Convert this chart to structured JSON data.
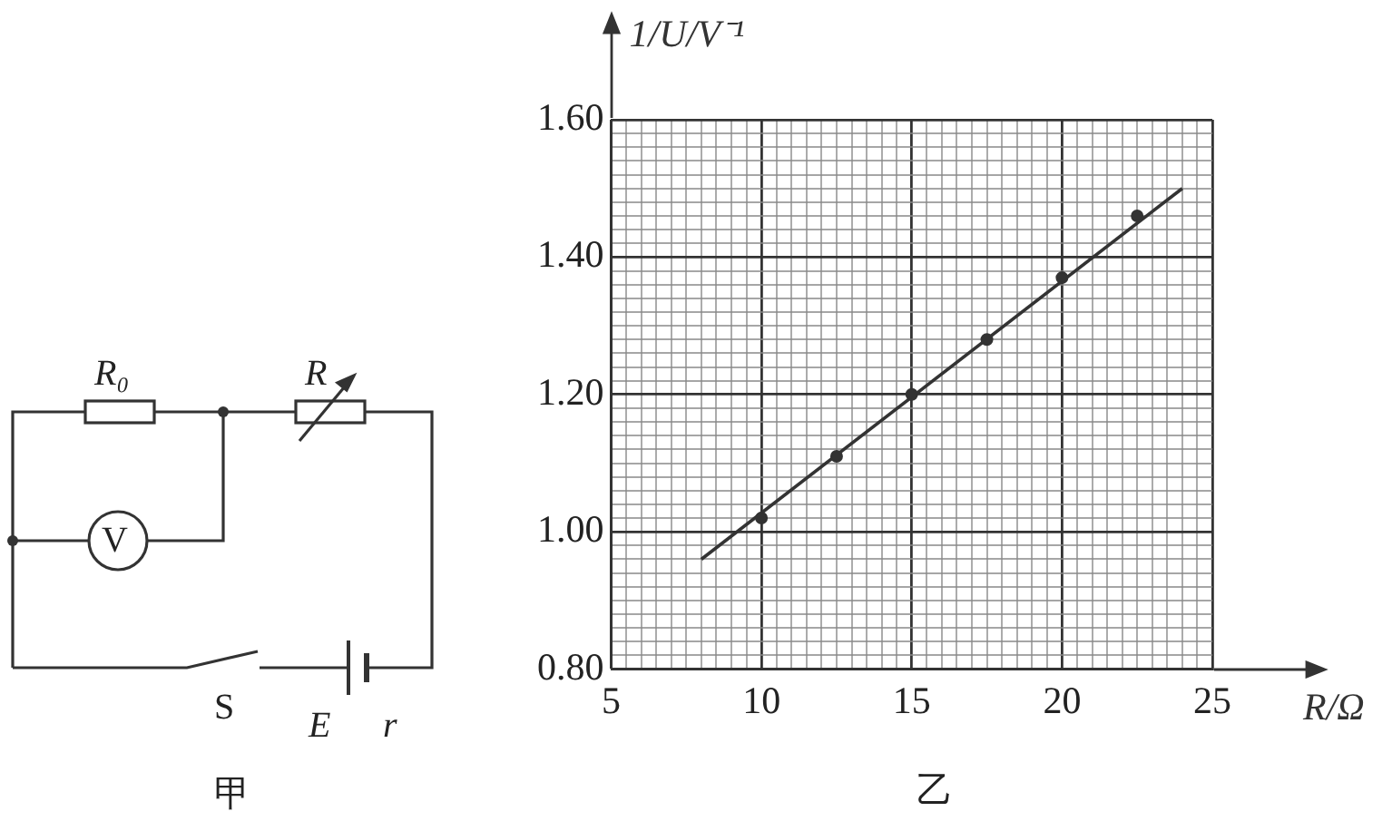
{
  "chart_data": {
    "type": "scatter",
    "xlabel": "R/Ω",
    "ylabel": "1/U/V⁻¹",
    "annotations": [
      "R₀",
      "R",
      "V",
      "S",
      "E",
      "r",
      "甲",
      "乙"
    ],
    "xlim": [
      5,
      25
    ],
    "ylim": [
      0.8,
      1.6
    ],
    "xticks": [
      5,
      {
        "value": 5.5,
        "label": null
      },
      {
        "value": 6,
        "label": null
      },
      {
        "value": 6.5,
        "label": null
      },
      {
        "value": 7,
        "label": null
      },
      {
        "value": 7.5,
        "label": null
      },
      {
        "value": 8,
        "label": null
      },
      {
        "value": 8.5,
        "label": null
      },
      {
        "value": 9,
        "label": null
      },
      {
        "value": 9.5,
        "label": null
      },
      10,
      {
        "value": 10.5,
        "label": null
      },
      {
        "value": 11,
        "label": null
      },
      {
        "value": 11.5,
        "label": null
      },
      {
        "value": 12,
        "label": null
      },
      {
        "value": 12.5,
        "label": null
      },
      {
        "value": 13,
        "label": null
      },
      {
        "value": 13.5,
        "label": null
      },
      {
        "value": 14,
        "label": null
      },
      {
        "value": 14.5,
        "label": null
      },
      15,
      {
        "value": 15.5,
        "label": null
      },
      {
        "value": 16,
        "label": null
      },
      {
        "value": 16.5,
        "label": null
      },
      {
        "value": 17,
        "label": null
      },
      {
        "value": 17.5,
        "label": null
      },
      {
        "value": 18,
        "label": null
      },
      {
        "value": 18.5,
        "label": null
      },
      {
        "value": 19,
        "label": null
      },
      {
        "value": 19.5,
        "label": null
      },
      20,
      {
        "value": 20.5,
        "label": null
      },
      {
        "value": 21,
        "label": null
      },
      {
        "value": 21.5,
        "label": null
      },
      {
        "value": 22,
        "label": null
      },
      {
        "value": 22.5,
        "label": null
      },
      {
        "value": 23,
        "label": null
      },
      {
        "value": 23.5,
        "label": null
      },
      {
        "value": 24,
        "label": null
      },
      {
        "value": 24.5,
        "label": null
      },
      25
    ],
    "yticks": [
      {
        "value": 0.8,
        "label": "0.80"
      },
      {
        "value": 0.82,
        "label": null
      },
      {
        "value": 0.84,
        "label": null
      },
      {
        "value": 0.86,
        "label": null
      },
      {
        "value": 0.88,
        "label": null
      },
      {
        "value": 0.9,
        "label": null
      },
      {
        "value": 0.92,
        "label": null
      },
      {
        "value": 0.94,
        "label": null
      },
      {
        "value": 0.96,
        "label": null
      },
      {
        "value": 0.98,
        "label": null
      },
      {
        "value": 1,
        "label": "1.00"
      },
      {
        "value": 1.02,
        "label": null
      },
      {
        "value": 1.04,
        "label": null
      },
      {
        "value": 1.06,
        "label": null
      },
      {
        "value": 1.08,
        "label": null
      },
      {
        "value": 1.1,
        "label": null
      },
      {
        "value": 1.12,
        "label": null
      },
      {
        "value": 1.14,
        "label": null
      },
      {
        "value": 1.16,
        "label": null
      },
      {
        "value": 1.18,
        "label": null
      },
      {
        "value": 1.2,
        "label": "1.20"
      },
      {
        "value": 1.22,
        "label": null
      },
      {
        "value": 1.24,
        "label": null
      },
      {
        "value": 1.26,
        "label": null
      },
      {
        "value": 1.28,
        "label": null
      },
      {
        "value": 1.3,
        "label": null
      },
      {
        "value": 1.32,
        "label": null
      },
      {
        "value": 1.34,
        "label": null
      },
      {
        "value": 1.36,
        "label": null
      },
      {
        "value": 1.38,
        "label": null
      },
      {
        "value": 1.4,
        "label": "1.40"
      },
      {
        "value": 1.42,
        "label": null
      },
      {
        "value": 1.44,
        "label": null
      },
      {
        "value": 1.46,
        "label": null
      },
      {
        "value": 1.48,
        "label": null
      },
      {
        "value": 1.5,
        "label": null
      },
      {
        "value": 1.52,
        "label": null
      },
      {
        "value": 1.54,
        "label": null
      },
      {
        "value": 1.56,
        "label": null
      },
      {
        "value": 1.58,
        "label": null
      },
      {
        "value": 1.6,
        "label": "1.60"
      }
    ],
    "grid": true,
    "marker": "circle",
    "series": [
      {
        "type": "scatter",
        "color": "#333333",
        "x": [
          10,
          12.5,
          15,
          17.5,
          20,
          22.5
        ],
        "values": [
          1.02,
          1.11,
          1.2,
          1.28,
          1.37,
          1.46
        ]
      },
      {
        "type": "line",
        "color": "#333333",
        "marker": "none",
        "x": [
          8,
          24
        ],
        "values": [
          0.96,
          1.5
        ]
      }
    ]
  }
}
